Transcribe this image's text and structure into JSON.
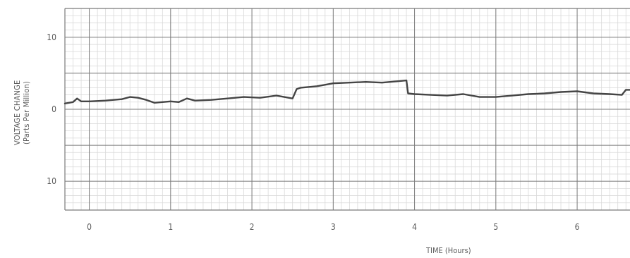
{
  "chart_data": {
    "type": "line",
    "title": "",
    "xlabel": "TIME (Hours)",
    "ylabel": "VOLTAGE CHANGE",
    "ylabel_sub": "(Parts Per Million)",
    "xlim": [
      -0.3,
      6.65
    ],
    "ylim": [
      -14,
      14
    ],
    "x_ticks": [
      0,
      1,
      2,
      3,
      4,
      5,
      6
    ],
    "x_tick_labels": [
      "0",
      "1",
      "2",
      "3",
      "4",
      "5",
      "6"
    ],
    "y_ticks": [
      10,
      0,
      -10
    ],
    "y_tick_labels": [
      "10",
      "0",
      "10"
    ],
    "grid": true,
    "colors": {
      "grid_minor": "#d9d9d9",
      "grid_major": "#7a7a7a",
      "line": "#454545",
      "text": "#5a5a5a"
    },
    "series": [
      {
        "x": [
          -0.3,
          -0.2,
          -0.15,
          -0.1,
          0.0,
          0.2,
          0.4,
          0.5,
          0.6,
          0.7,
          0.8,
          1.0,
          1.1,
          1.2,
          1.3,
          1.5,
          1.7,
          1.9,
          2.1,
          2.3,
          2.5,
          2.55,
          2.6,
          2.8,
          3.0,
          3.2,
          3.4,
          3.6,
          3.8,
          3.9,
          3.92,
          4.0,
          4.2,
          4.4,
          4.6,
          4.8,
          5.0,
          5.2,
          5.4,
          5.6,
          5.8,
          6.0,
          6.2,
          6.4,
          6.55,
          6.6,
          6.65
        ],
        "y": [
          0.8,
          1.0,
          1.5,
          1.1,
          1.1,
          1.2,
          1.4,
          1.7,
          1.6,
          1.3,
          0.9,
          1.1,
          1.0,
          1.5,
          1.2,
          1.3,
          1.5,
          1.7,
          1.6,
          1.9,
          1.5,
          2.8,
          3.0,
          3.2,
          3.6,
          3.7,
          3.8,
          3.7,
          3.9,
          4.0,
          2.2,
          2.1,
          2.0,
          1.9,
          2.1,
          1.7,
          1.7,
          1.9,
          2.1,
          2.2,
          2.4,
          2.5,
          2.2,
          2.1,
          2.0,
          2.7,
          2.7
        ]
      }
    ]
  }
}
